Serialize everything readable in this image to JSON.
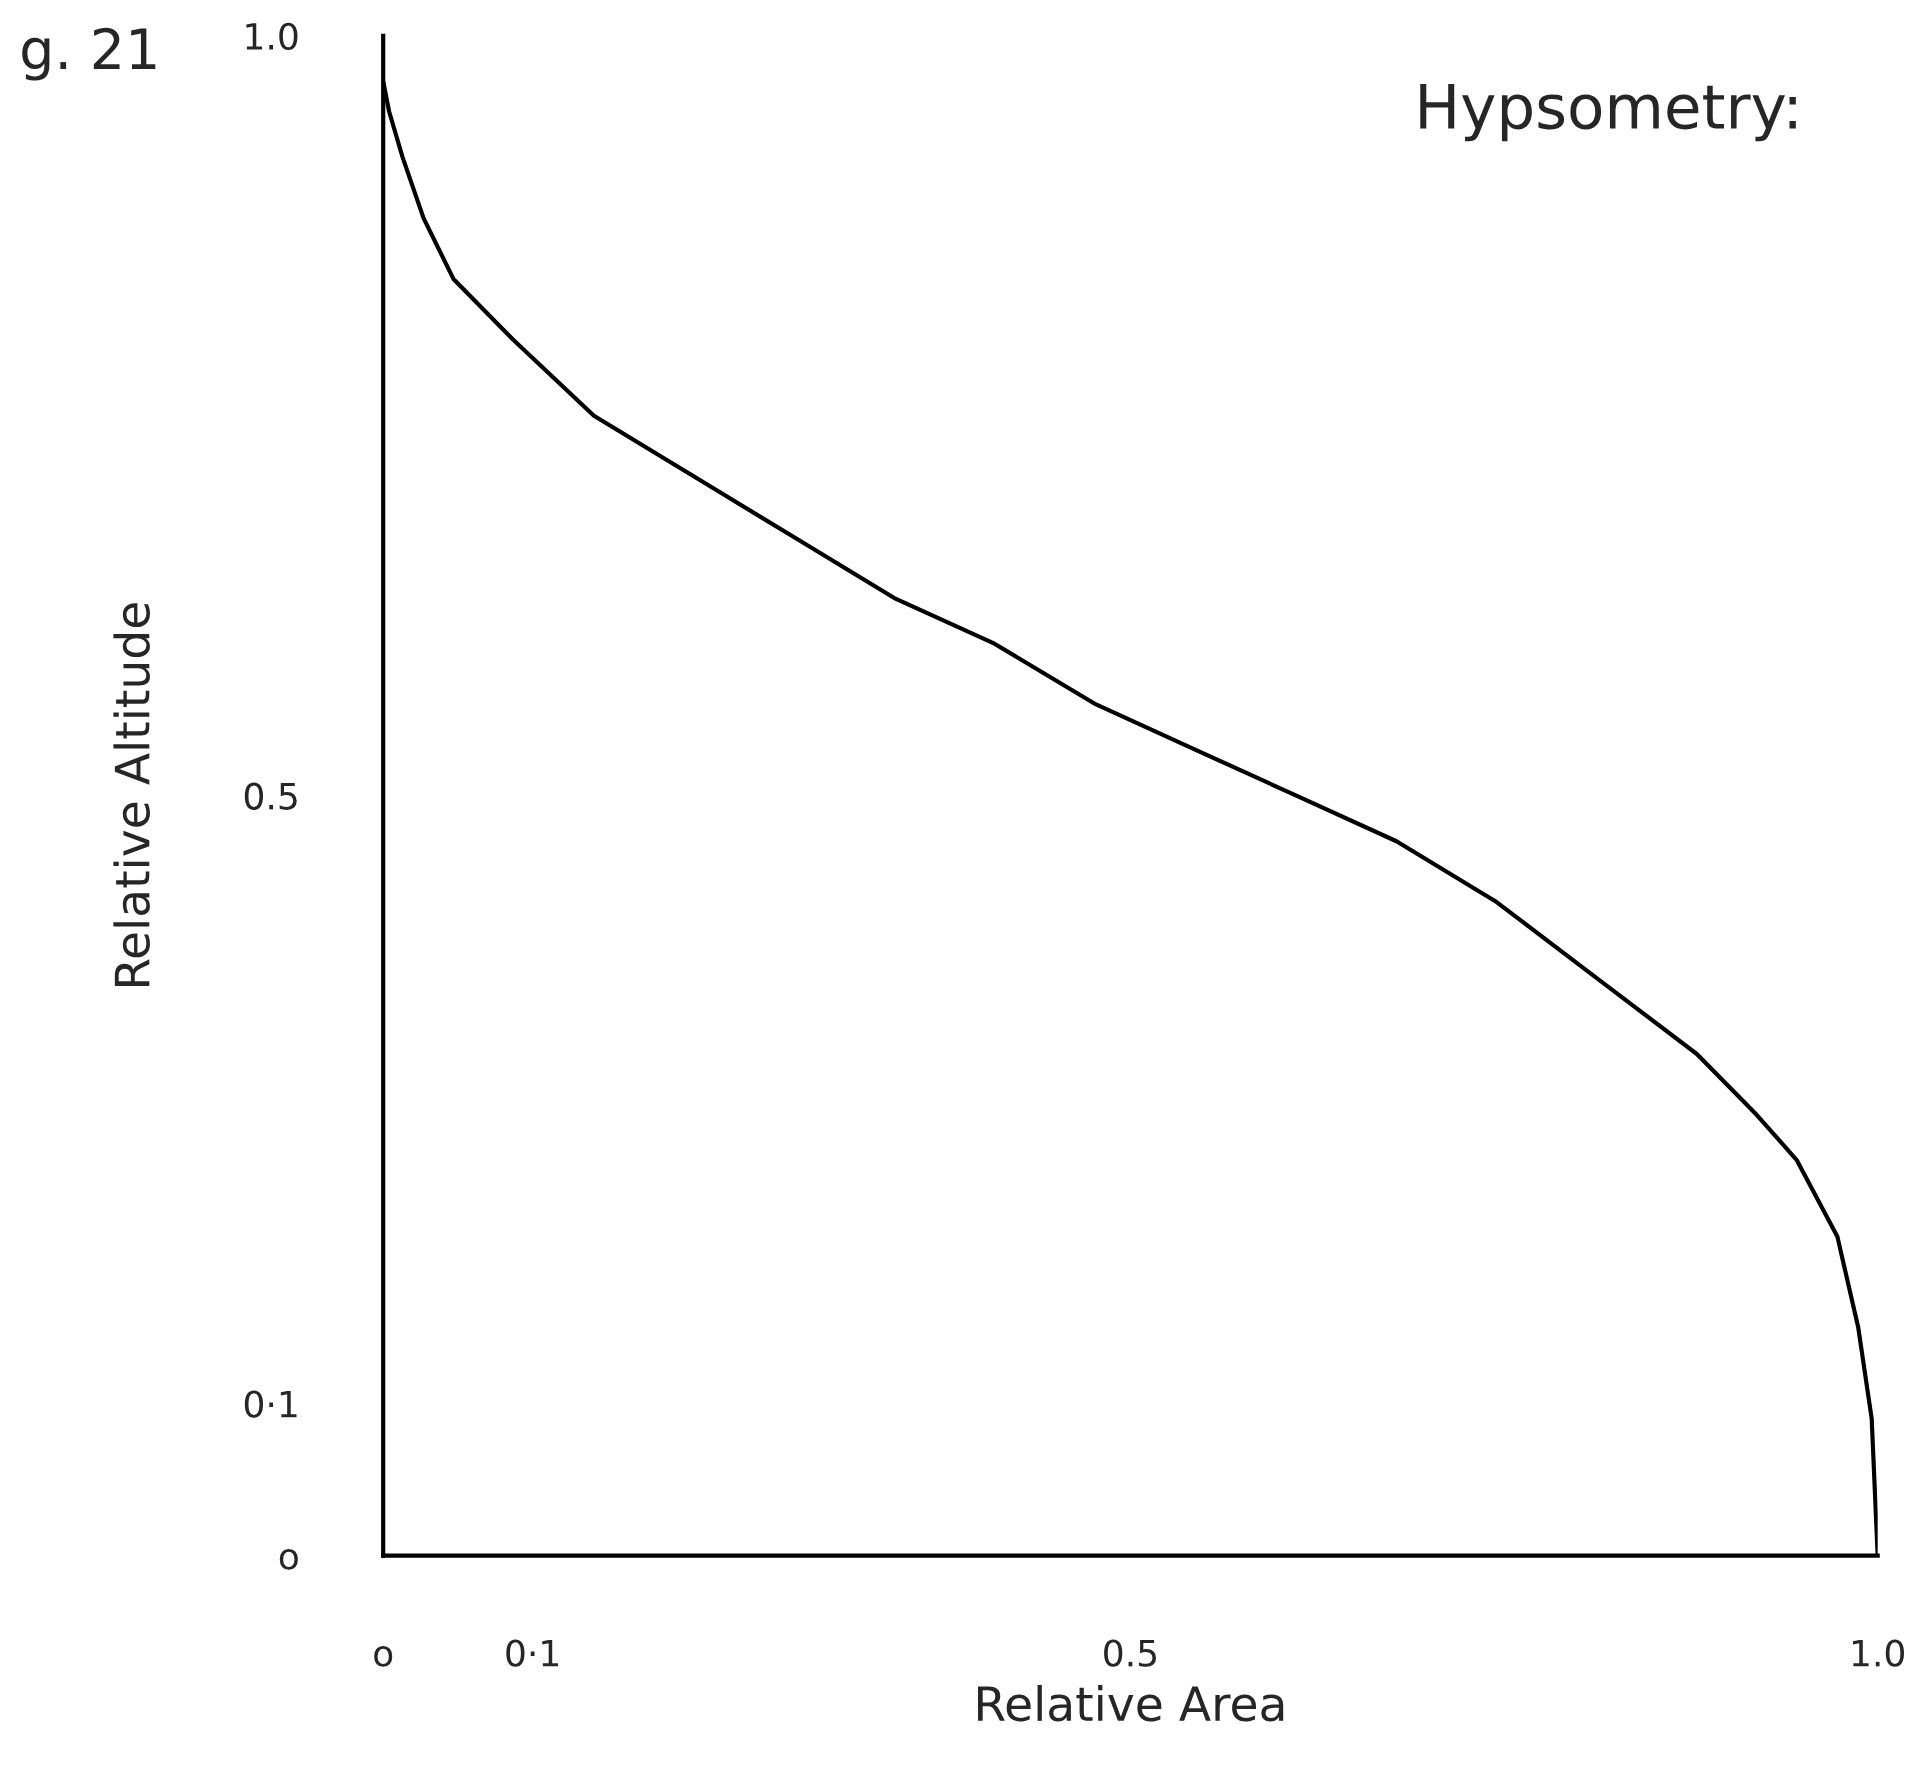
{
  "chart_data": {
    "type": "line",
    "title": "Hypsometry:",
    "xlabel": "Relative Area",
    "ylabel": "Relative Altitude",
    "annotations": [
      "g. 21"
    ],
    "x": [
      0,
      0.004,
      0.013,
      0.027,
      0.047,
      0.087,
      0.141,
      0.208,
      0.275,
      0.342,
      0.409,
      0.477,
      0.544,
      0.611,
      0.678,
      0.745,
      0.812,
      0.879,
      0.919,
      0.946,
      0.973,
      0.987,
      0.996,
      1.0
    ],
    "series": [
      {
        "color": "#000000",
        "values": [
          0.97,
          0.95,
          0.92,
          0.88,
          0.84,
          0.8,
          0.75,
          0.71,
          0.67,
          0.63,
          0.6,
          0.56,
          0.53,
          0.5,
          0.47,
          0.43,
          0.38,
          0.33,
          0.29,
          0.26,
          0.21,
          0.15,
          0.09,
          0.0
        ]
      }
    ],
    "xlim": [
      0,
      1.0
    ],
    "ylim": [
      0,
      1.0
    ],
    "xticks": [
      {
        "value": 0,
        "label": "o"
      },
      {
        "value": 0.1,
        "label": "0·1"
      },
      {
        "value": 0.5,
        "label": "0.5"
      },
      {
        "value": 1.0,
        "label": "1.0"
      }
    ],
    "yticks": [
      {
        "value": 0,
        "label": "o"
      },
      {
        "value": 0.1,
        "label": "0·1"
      },
      {
        "value": 0.5,
        "label": "0.5"
      },
      {
        "value": 1.0,
        "label": "1.0"
      }
    ],
    "grid": false,
    "legend": false,
    "marker": "none",
    "line_style": "solid"
  }
}
